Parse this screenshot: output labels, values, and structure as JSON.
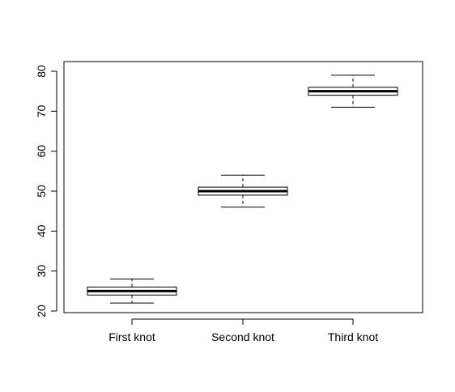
{
  "chart_data": {
    "type": "boxplot",
    "title": "",
    "xlabel": "",
    "ylabel": "",
    "ylim": [
      19.5,
      82
    ],
    "yticks": [
      20,
      30,
      40,
      50,
      60,
      70,
      80
    ],
    "grid": false,
    "categories": [
      "First knot",
      "Second knot",
      "Third knot"
    ],
    "boxes": [
      {
        "whisker_low": 22,
        "q1": 24,
        "median": 25,
        "q3": 26,
        "whisker_high": 28
      },
      {
        "whisker_low": 46,
        "q1": 49,
        "median": 50,
        "q3": 51,
        "whisker_high": 54
      },
      {
        "whisker_low": 71,
        "q1": 74,
        "median": 75,
        "q3": 76,
        "whisker_high": 79
      }
    ]
  }
}
